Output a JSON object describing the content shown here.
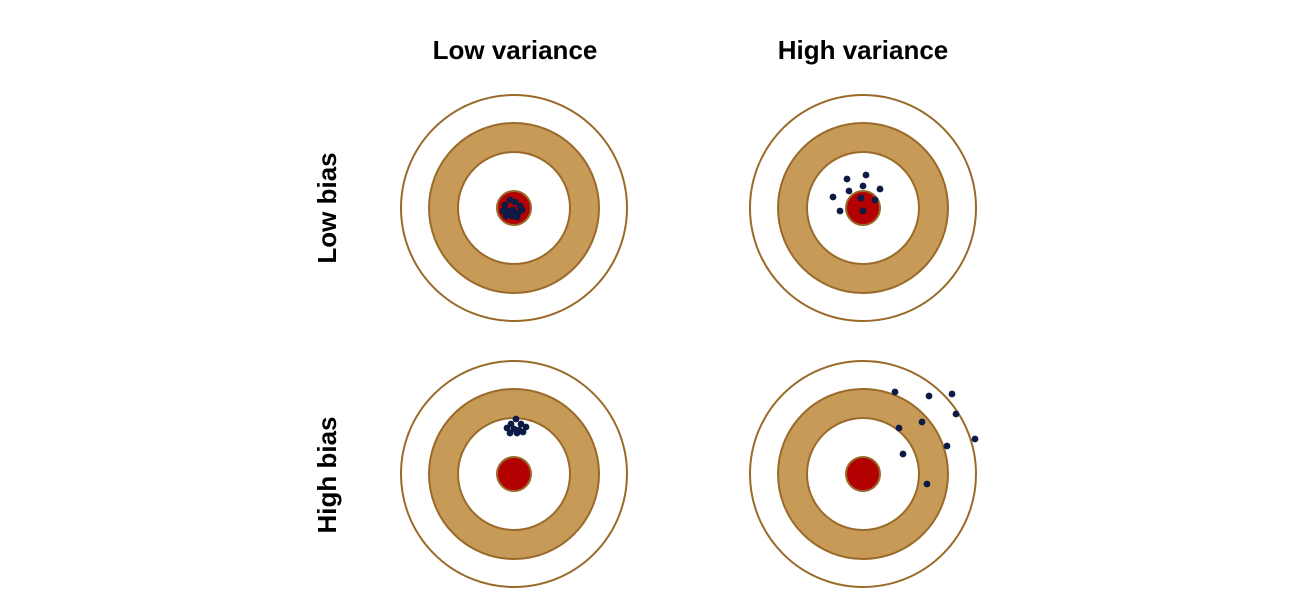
{
  "column_headers": [
    "Low variance",
    "High variance"
  ],
  "row_headers": [
    "Low bias",
    "High bias"
  ],
  "colors": {
    "ring_stroke": "#9a6a2a",
    "ring_fill": "#c79a58",
    "bullseye": "#b30000",
    "point": "#0d1a45",
    "background": "#ffffff"
  }
}
